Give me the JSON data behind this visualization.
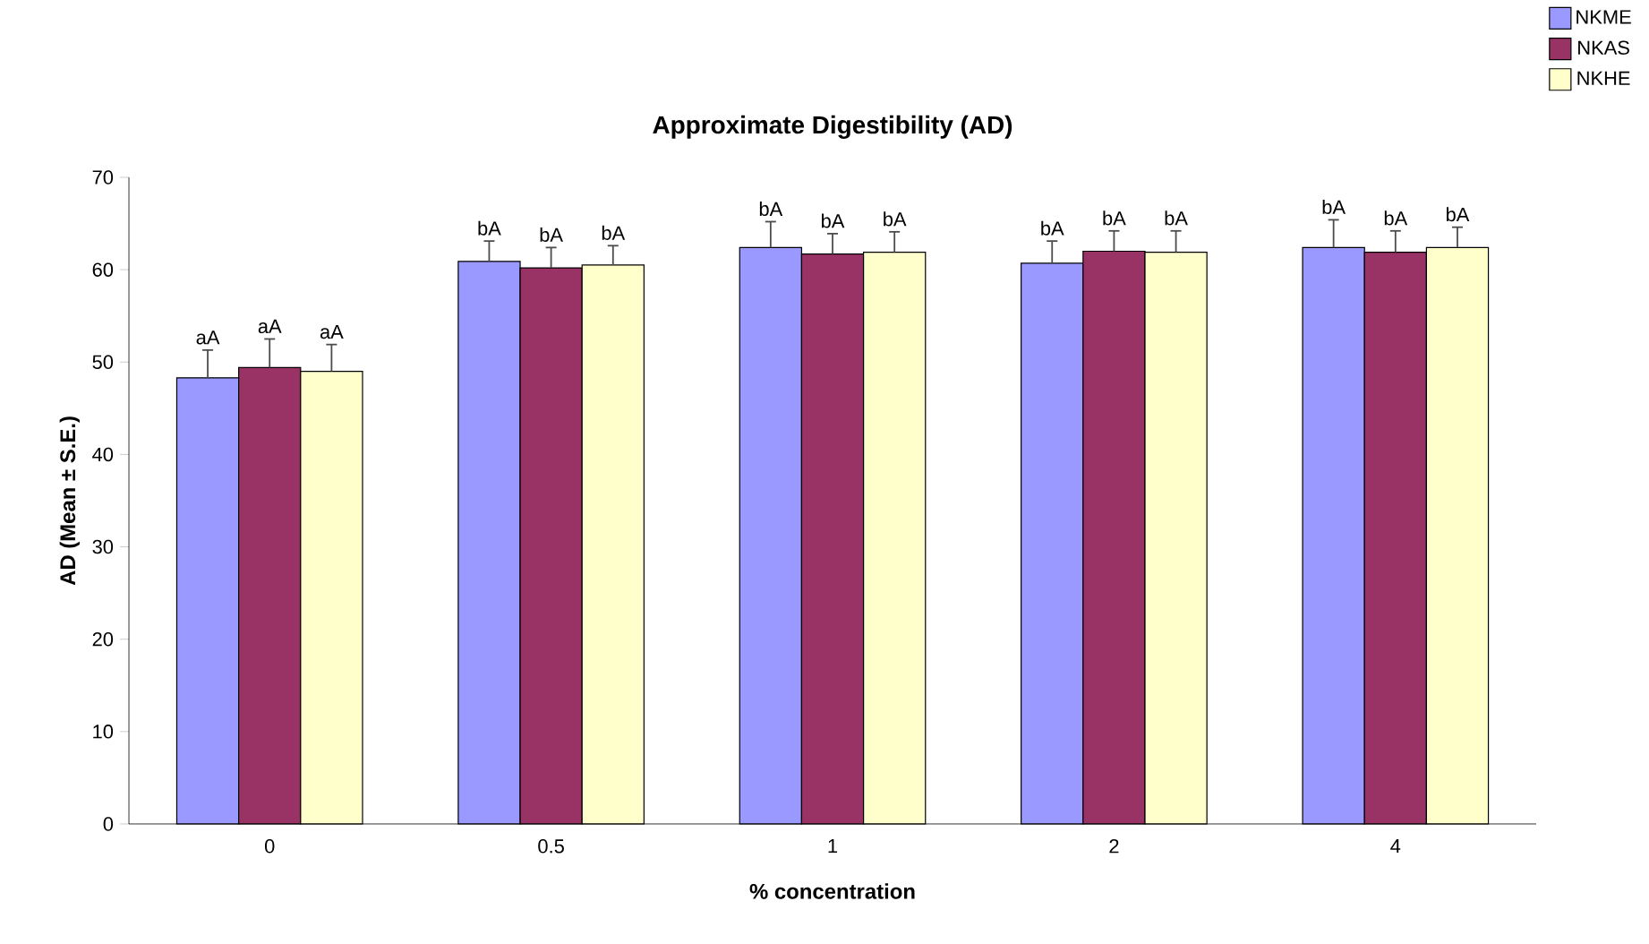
{
  "chart_data": {
    "type": "bar",
    "title": "Approximate Digestibility (AD)",
    "xlabel": "% concentration",
    "ylabel": "AD (Mean ± S.E.)",
    "categories": [
      "0",
      "0.5",
      "1",
      "2",
      "4"
    ],
    "series": [
      {
        "name": "NKME",
        "color": "#9999ff",
        "values": [
          48.3,
          60.9,
          62.4,
          60.7,
          62.4
        ],
        "errors": [
          [
            48.3,
            51.3
          ],
          [
            60.9,
            63.1
          ],
          [
            62.4,
            65.2
          ],
          [
            60.7,
            63.1
          ],
          [
            62.4,
            65.4
          ]
        ],
        "value_labels": [
          "aA",
          "bA",
          "bA",
          "bA",
          "bA"
        ]
      },
      {
        "name": "NKAS",
        "color": "#993366",
        "values": [
          49.4,
          60.2,
          61.7,
          62.0,
          61.9
        ],
        "errors": [
          [
            49.4,
            52.5
          ],
          [
            60.2,
            62.4
          ],
          [
            61.7,
            63.9
          ],
          [
            62.0,
            64.2
          ],
          [
            61.9,
            64.2
          ]
        ],
        "value_labels": [
          "aA",
          "bA",
          "bA",
          "bA",
          "bA"
        ]
      },
      {
        "name": "NKHE",
        "color": "#ffffcc",
        "values": [
          49.0,
          60.5,
          61.9,
          61.9,
          62.4
        ],
        "errors": [
          [
            49.0,
            51.9
          ],
          [
            60.5,
            62.6
          ],
          [
            61.9,
            64.1
          ],
          [
            61.9,
            64.2
          ],
          [
            62.4,
            64.6
          ]
        ],
        "value_labels": [
          "aA",
          "bA",
          "bA",
          "bA",
          "bA"
        ]
      }
    ],
    "ylim": [
      0,
      70
    ],
    "yticks": [
      0,
      10,
      20,
      30,
      40,
      50,
      60,
      70
    ],
    "legend": "top right",
    "grid": false
  }
}
